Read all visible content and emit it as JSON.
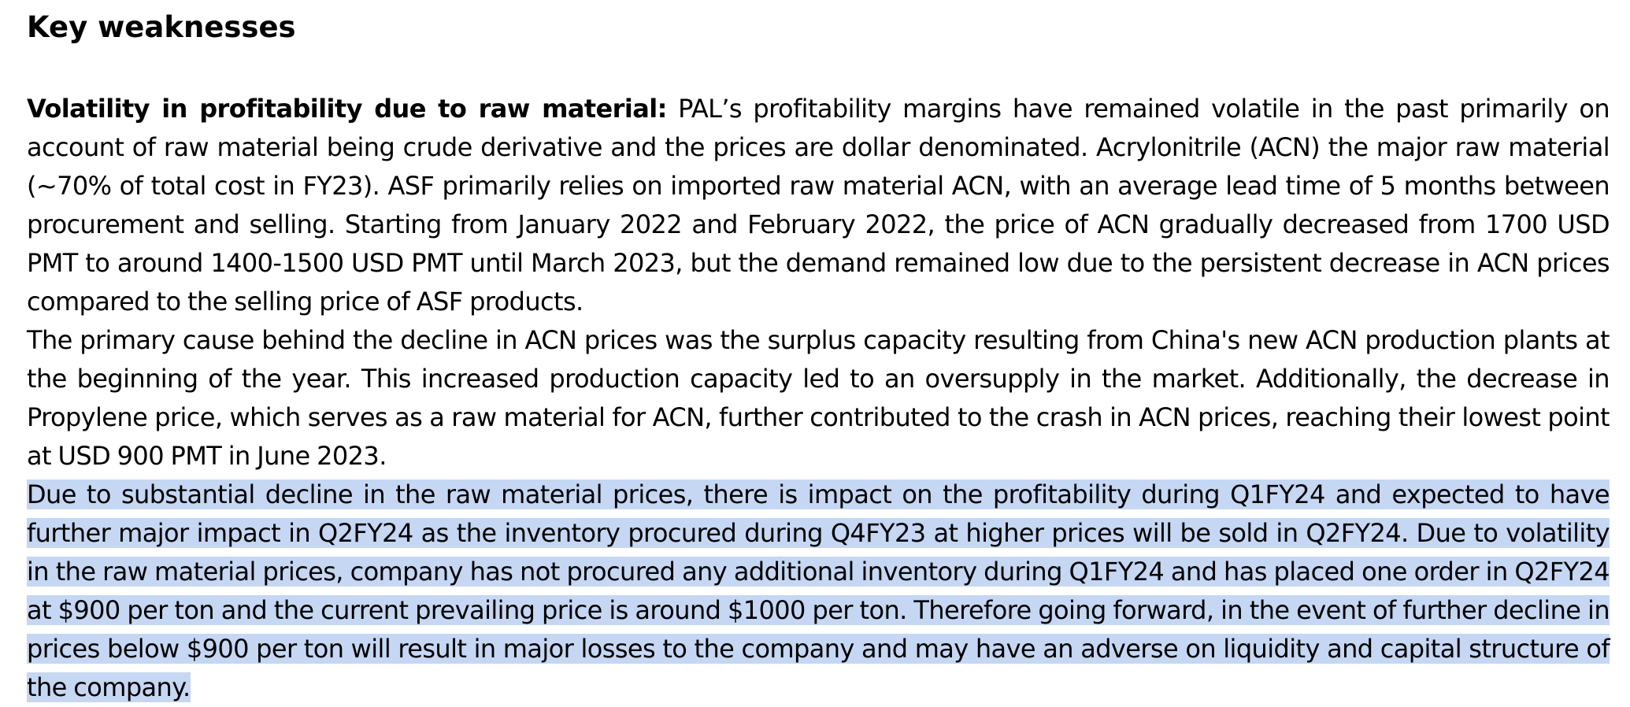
{
  "document": {
    "heading": "Key weaknesses",
    "paragraph1": {
      "lead": "Volatility in profitability due to raw material:",
      "text": " PAL’s profitability margins have remained volatile in the past primarily on account of raw material being crude derivative and the prices are dollar denominated. Acrylonitrile (ACN) the major raw material (~70% of total cost in FY23). ASF primarily relies on imported raw material ACN, with an average lead time of 5 months between procurement and selling. Starting from January 2022 and February 2022, the price of ACN gradually decreased from 1700 USD PMT to around 1400-1500 USD PMT until March 2023, but the demand remained low due to the persistent decrease in ACN prices compared to the selling price of ASF products."
    },
    "paragraph2": "The primary cause behind the decline in ACN prices was the surplus capacity resulting from China's new ACN production plants at the beginning of the year. This increased production capacity led to an oversupply in the market. Additionally, the decrease in Propylene price, which serves as a raw material for ACN, further contributed to the crash in ACN prices, reaching their lowest point at USD 900 PMT in June 2023.",
    "paragraph3": "Due to substantial decline in the raw material prices, there is impact on the profitability during Q1FY24 and expected to have further major impact in Q2FY24 as the inventory procured during Q4FY23 at higher prices will be sold in Q2FY24. Due to volatility in the raw material prices, company has not procured any additional inventory during Q1FY24 and has placed one order in Q2FY24 at $900 per ton and the current prevailing price is around $1000 per ton. Therefore going forward, in the event of further decline in prices below $900 per ton will result in major losses to the company and may have an adverse on liquidity and capital structure of the company.",
    "selection_color": "#c5d7f3"
  }
}
